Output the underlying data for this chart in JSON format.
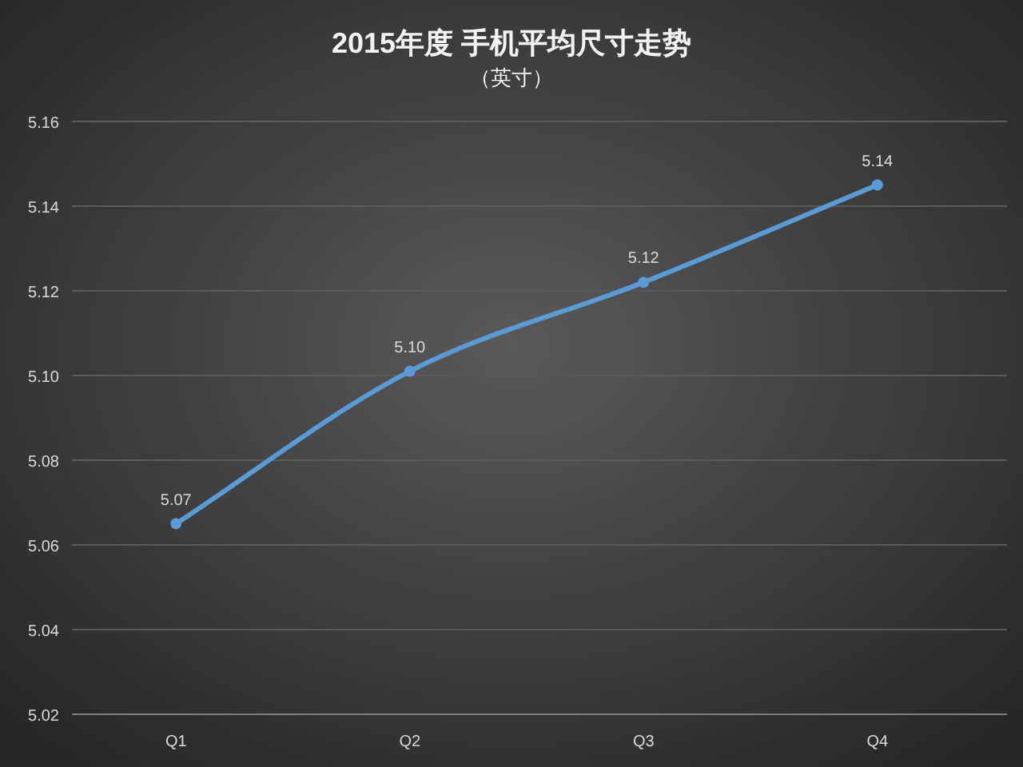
{
  "chart_data": {
    "type": "line",
    "title": "2015年度 手机平均尺寸走势",
    "subtitle": "（英寸）",
    "categories": [
      "Q1",
      "Q2",
      "Q3",
      "Q4"
    ],
    "series": [
      {
        "color": "#5b9bd5",
        "values": [
          5.065,
          5.101,
          5.122,
          5.145
        ],
        "value_labels": [
          "5.07",
          "5.10",
          "5.12",
          "5.14"
        ]
      }
    ],
    "ylim": [
      5.02,
      5.16
    ],
    "yticks": [
      5.02,
      5.04,
      5.06,
      5.08,
      {
        "value": 5.1,
        "label": "5.10"
      },
      5.12,
      5.14,
      5.16
    ],
    "grid": "y",
    "marker": "circle",
    "line_style": "solid"
  }
}
